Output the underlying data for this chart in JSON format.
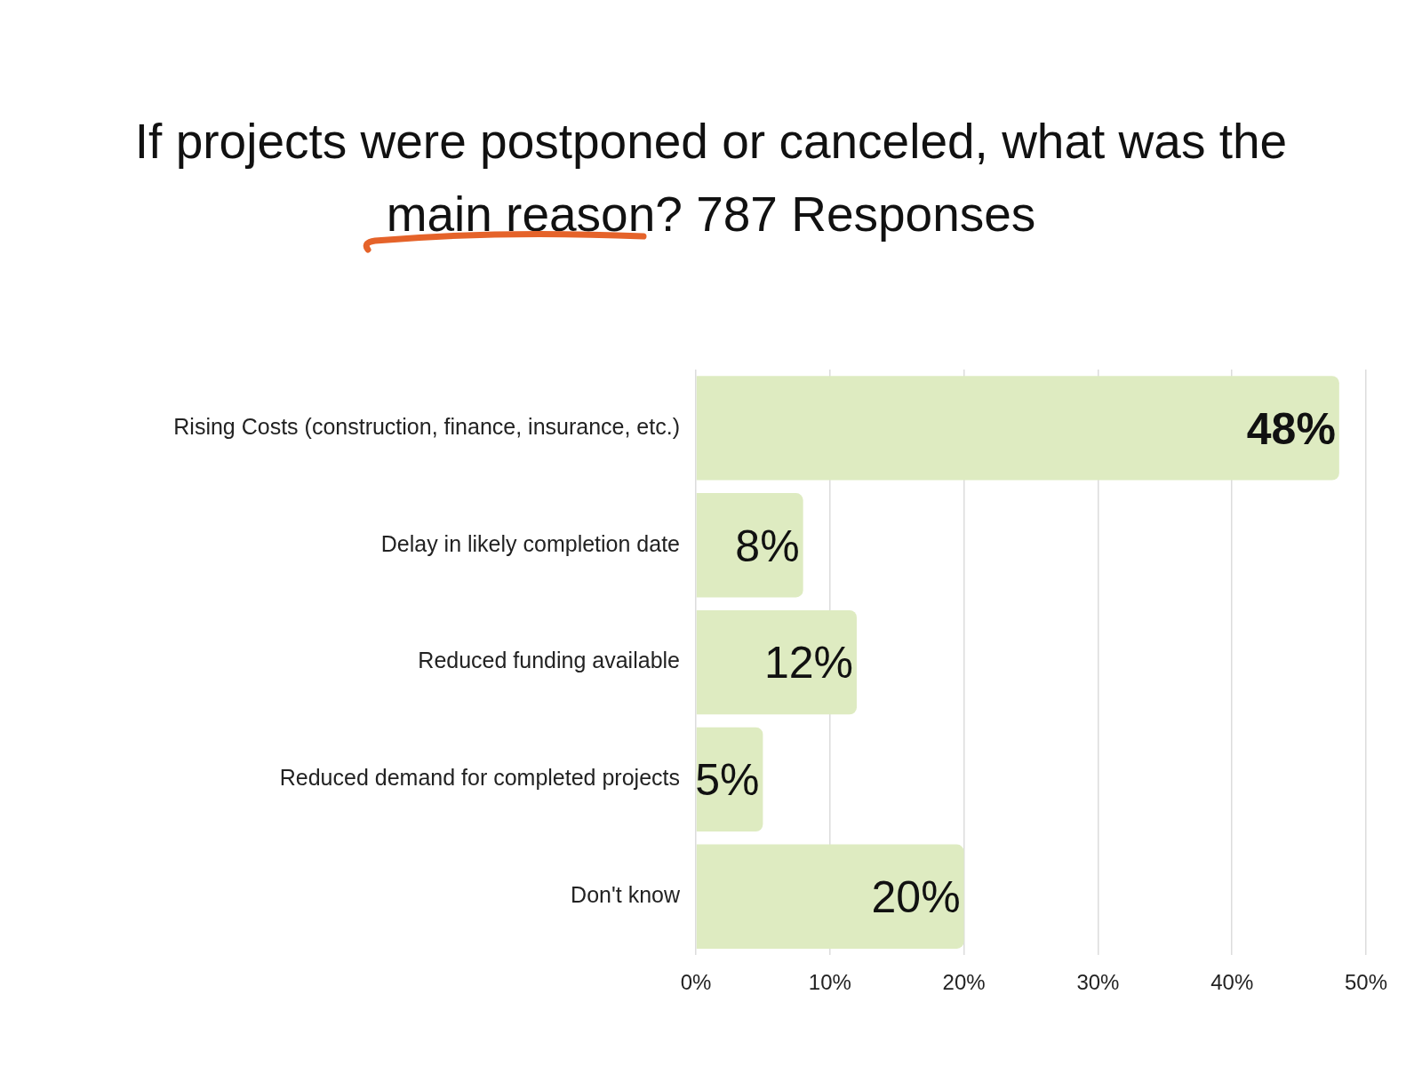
{
  "chart_data": {
    "type": "bar",
    "orientation": "horizontal",
    "title": "If projects were postponed or canceled, what was the main reason? 787 Responses",
    "categories": [
      "Rising Costs (construction, finance, insurance, etc.)",
      "Delay in likely completion date",
      "Reduced funding available",
      "Reduced demand for completed projects",
      "Don't know"
    ],
    "values": [
      48,
      8,
      12,
      5,
      20
    ],
    "color": "#deebc1",
    "value_labels": [
      "48%",
      "8%",
      "12%",
      "5%",
      "20%"
    ],
    "xlim": [
      0,
      50
    ],
    "xticks": [
      {
        "value": 0,
        "label": "0%"
      },
      {
        "value": 10,
        "label": "10%"
      },
      {
        "value": 20,
        "label": "20%"
      },
      {
        "value": 30,
        "label": "30%"
      },
      {
        "value": 40,
        "label": "40%"
      },
      {
        "value": 50,
        "label": "50%"
      }
    ],
    "grid": "x"
  }
}
